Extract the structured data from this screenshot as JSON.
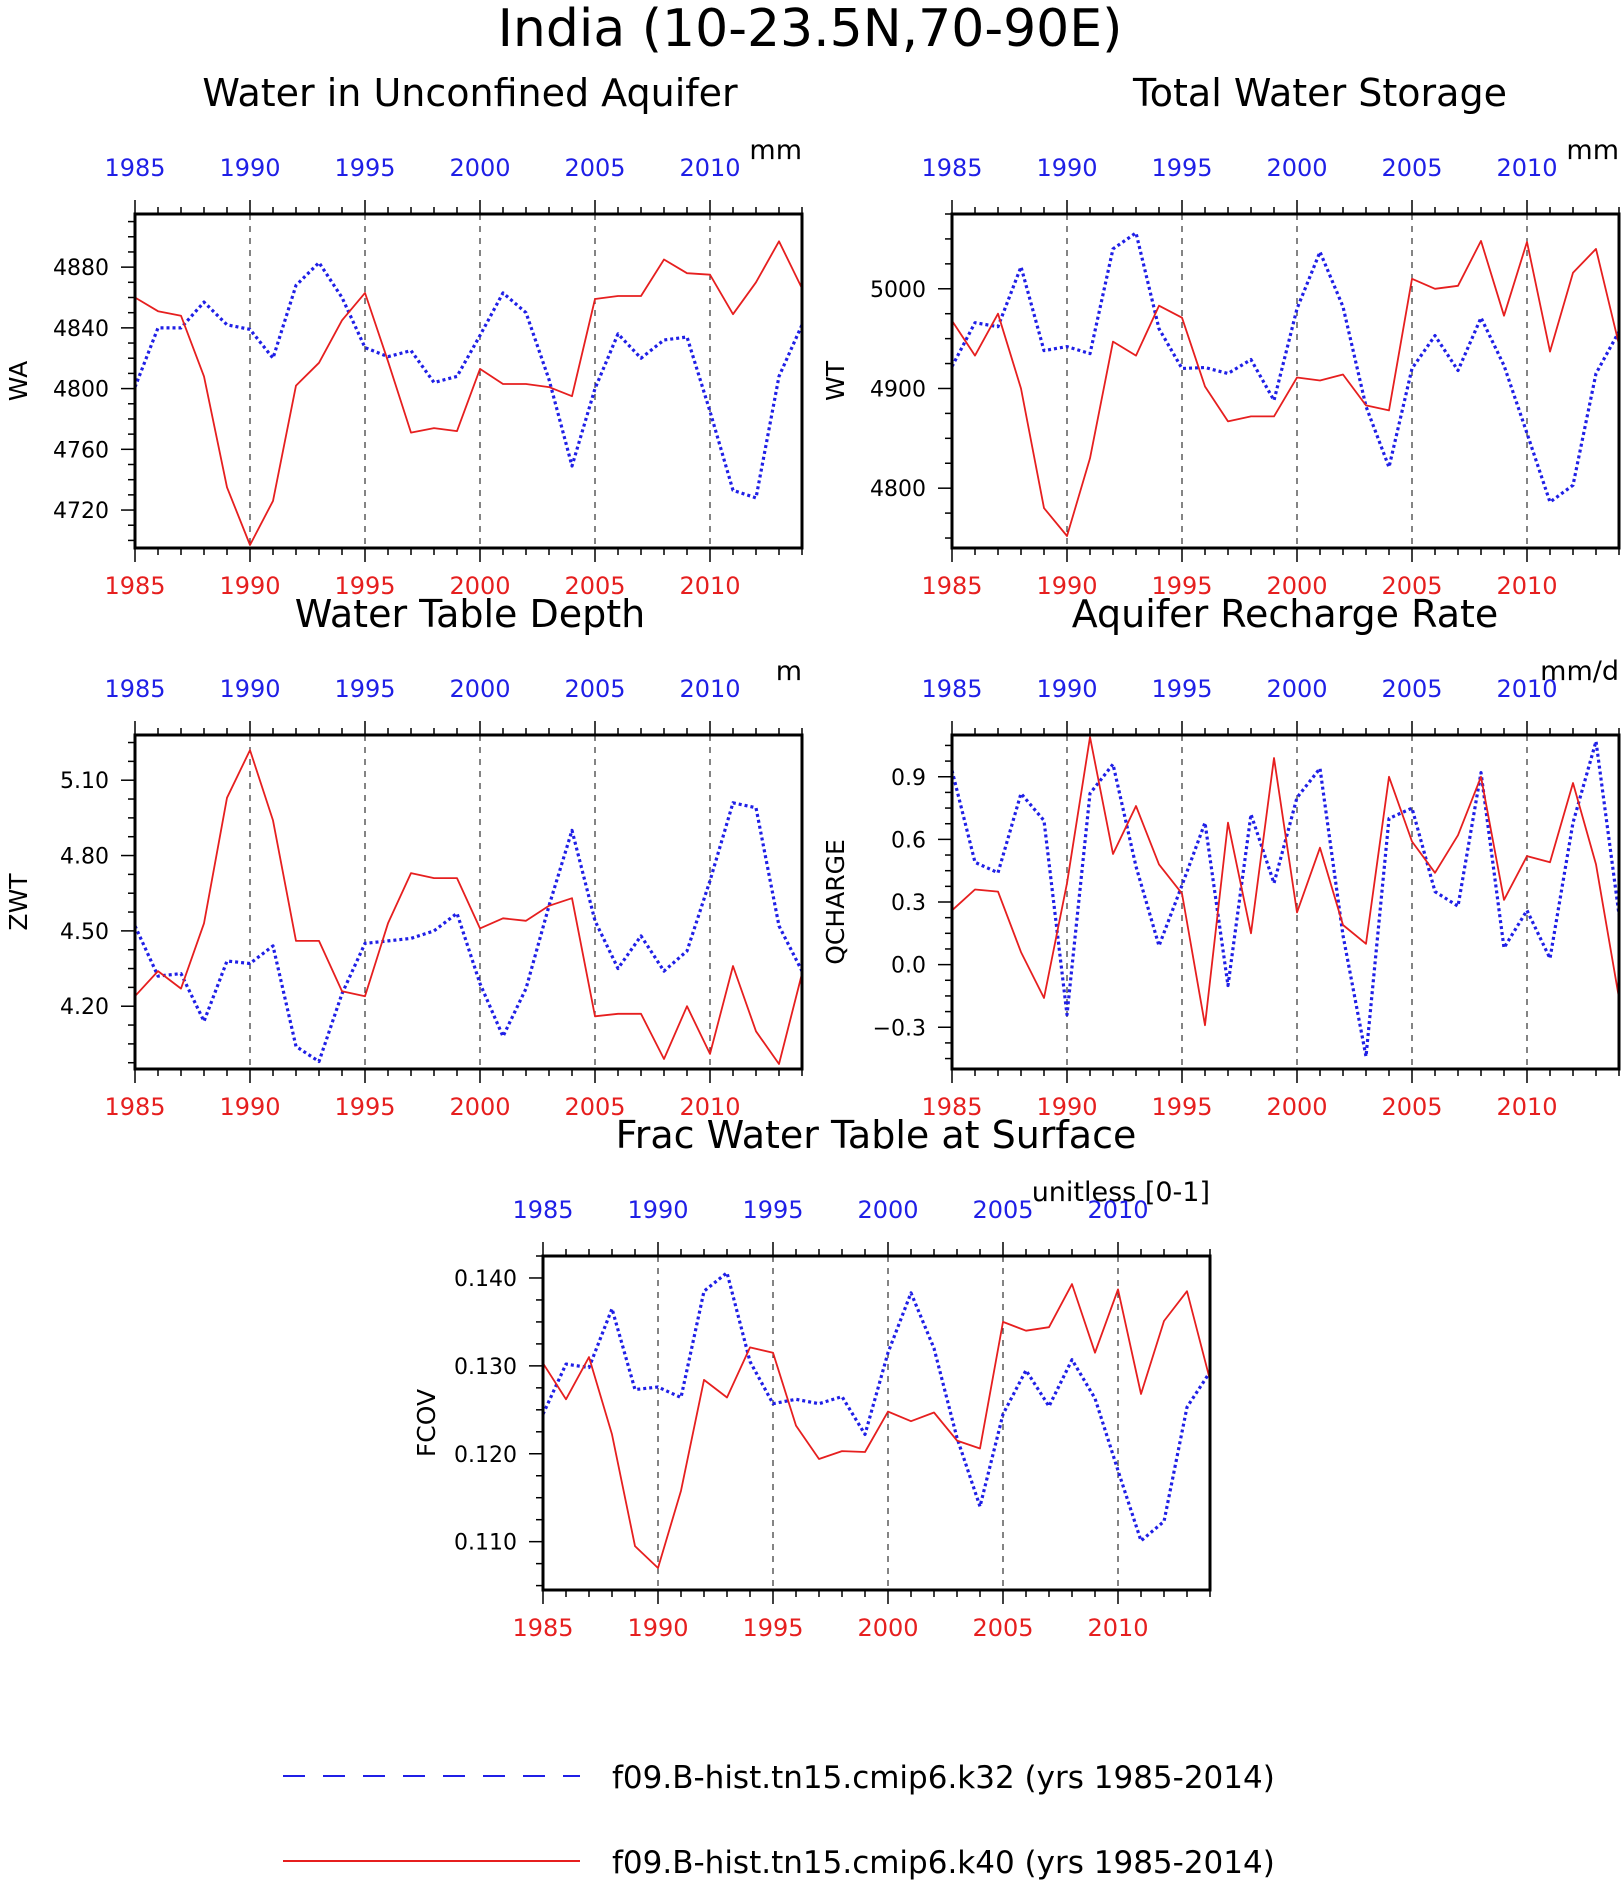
{
  "page_title": "India (10-23.5N,70-90E)",
  "colors": {
    "k32": "#1f1fe6",
    "k40": "#e61f1f",
    "axis": "#000000"
  },
  "legend": [
    {
      "label": "f09.B-hist.tn15.cmip6.k32 (yrs 1985-2014)",
      "style": "dashed",
      "color": "#1f1fe6"
    },
    {
      "label": "f09.B-hist.tn15.cmip6.k40 (yrs 1985-2014)",
      "style": "solid",
      "color": "#e61f1f"
    }
  ],
  "chart_data": [
    {
      "type": "line",
      "title": "Water in Unconfined Aquifer",
      "units": "mm",
      "ylabel": "WA",
      "xlim": [
        1985,
        2014
      ],
      "ylim": [
        4695,
        4915
      ],
      "yticks": [
        4720,
        4760,
        4800,
        4840,
        4880
      ],
      "ytick_labels": [
        "4720",
        "4760",
        "4800",
        "4840",
        "4880"
      ],
      "xticks": [
        1985,
        1990,
        1995,
        2000,
        2005,
        2010
      ],
      "ref_years": [
        1990,
        1995,
        2000,
        2005,
        2010
      ],
      "x": [
        1985,
        1986,
        1987,
        1988,
        1989,
        1990,
        1991,
        1992,
        1993,
        1994,
        1995,
        1996,
        1997,
        1998,
        1999,
        2000,
        2001,
        2002,
        2003,
        2004,
        2005,
        2006,
        2007,
        2008,
        2009,
        2010,
        2011,
        2012,
        2013,
        2014
      ],
      "series": [
        {
          "name": "f09.B-hist.tn15.cmip6.k32",
          "values": [
            4801,
            4840,
            4840,
            4857,
            4842,
            4839,
            4820,
            4868,
            4883,
            4860,
            4827,
            4821,
            4825,
            4804,
            4808,
            4835,
            4863,
            4850,
            4806,
            4749,
            4800,
            4836,
            4820,
            4832,
            4834,
            4785,
            4733,
            4728,
            4808,
            4842
          ]
        },
        {
          "name": "f09.B-hist.tn15.cmip6.k40",
          "values": [
            4860,
            4851,
            4848,
            4808,
            4735,
            4697,
            4726,
            4802,
            4817,
            4845,
            4863,
            4818,
            4771,
            4774,
            4772,
            4813,
            4803,
            4803,
            4801,
            4795,
            4859,
            4861,
            4861,
            4885,
            4876,
            4875,
            4849,
            4870,
            4897,
            4866
          ]
        }
      ]
    },
    {
      "type": "line",
      "title": "Total Water Storage",
      "units": "mm",
      "ylabel": "WT",
      "xlim": [
        1985,
        2014
      ],
      "ylim": [
        4740,
        5075
      ],
      "yticks": [
        4800,
        4900,
        5000
      ],
      "ytick_labels": [
        "4800",
        "4900",
        "5000"
      ],
      "xticks": [
        1985,
        1990,
        1995,
        2000,
        2005,
        2010
      ],
      "ref_years": [
        1990,
        1995,
        2000,
        2005,
        2010
      ],
      "x": [
        1985,
        1986,
        1987,
        1988,
        1989,
        1990,
        1991,
        1992,
        1993,
        1994,
        1995,
        1996,
        1997,
        1998,
        1999,
        2000,
        2001,
        2002,
        2003,
        2004,
        2005,
        2006,
        2007,
        2008,
        2009,
        2010,
        2011,
        2012,
        2013,
        2014
      ],
      "series": [
        {
          "name": "f09.B-hist.tn15.cmip6.k32",
          "values": [
            4922,
            4966,
            4962,
            5022,
            4938,
            4942,
            4935,
            5040,
            5056,
            4960,
            4920,
            4921,
            4915,
            4929,
            4888,
            4980,
            5037,
            4982,
            4882,
            4821,
            4920,
            4953,
            4918,
            4971,
            4923,
            4855,
            4786,
            4803,
            4915,
            4957
          ]
        },
        {
          "name": "f09.B-hist.tn15.cmip6.k40",
          "values": [
            4968,
            4933,
            4975,
            4900,
            4780,
            4752,
            4830,
            4947,
            4933,
            4983,
            4971,
            4902,
            4867,
            4872,
            4872,
            4911,
            4908,
            4914,
            4883,
            4878,
            5010,
            5000,
            5003,
            5048,
            4973,
            5047,
            4937,
            5016,
            5040,
            4944
          ]
        }
      ]
    },
    {
      "type": "line",
      "title": "Water Table Depth",
      "units": "m",
      "ylabel": "ZWT",
      "xlim": [
        1985,
        2014
      ],
      "ylim": [
        3.95,
        5.28
      ],
      "yticks": [
        4.2,
        4.5,
        4.8,
        5.1
      ],
      "ytick_labels": [
        "4.20",
        "4.50",
        "4.80",
        "5.10"
      ],
      "xticks": [
        1985,
        1990,
        1995,
        2000,
        2005,
        2010
      ],
      "ref_years": [
        1990,
        1995,
        2000,
        2005,
        2010
      ],
      "x": [
        1985,
        1986,
        1987,
        1988,
        1989,
        1990,
        1991,
        1992,
        1993,
        1994,
        1995,
        1996,
        1997,
        1998,
        1999,
        2000,
        2001,
        2002,
        2003,
        2004,
        2005,
        2006,
        2007,
        2008,
        2009,
        2010,
        2011,
        2012,
        2013,
        2014
      ],
      "series": [
        {
          "name": "f09.B-hist.tn15.cmip6.k32",
          "values": [
            4.52,
            4.32,
            4.33,
            4.14,
            4.38,
            4.37,
            4.44,
            4.04,
            3.98,
            4.25,
            4.45,
            4.46,
            4.47,
            4.5,
            4.57,
            4.29,
            4.08,
            4.27,
            4.6,
            4.9,
            4.54,
            4.35,
            4.48,
            4.34,
            4.42,
            4.7,
            5.01,
            4.99,
            4.52,
            4.34
          ]
        },
        {
          "name": "f09.B-hist.tn15.cmip6.k40",
          "values": [
            4.24,
            4.34,
            4.27,
            4.53,
            5.03,
            5.22,
            4.94,
            4.46,
            4.46,
            4.26,
            4.24,
            4.53,
            4.73,
            4.71,
            4.71,
            4.51,
            4.55,
            4.54,
            4.6,
            4.63,
            4.16,
            4.17,
            4.17,
            3.99,
            4.2,
            4.01,
            4.36,
            4.1,
            3.97,
            4.33
          ]
        }
      ]
    },
    {
      "type": "line",
      "title": "Aquifer Recharge Rate",
      "units": "mm/d",
      "ylabel": "QCHARGE",
      "xlim": [
        1985,
        2014
      ],
      "ylim": [
        -0.5,
        1.1
      ],
      "yticks": [
        -0.3,
        0.0,
        0.3,
        0.6,
        0.9
      ],
      "ytick_labels": [
        "−0.3",
        "0.0",
        "0.3",
        "0.6",
        "0.9"
      ],
      "xticks": [
        1985,
        1990,
        1995,
        2000,
        2005,
        2010
      ],
      "ref_years": [
        1990,
        1995,
        2000,
        2005,
        2010
      ],
      "x": [
        1985,
        1986,
        1987,
        1988,
        1989,
        1990,
        1991,
        1992,
        1993,
        1994,
        1995,
        1996,
        1997,
        1998,
        1999,
        2000,
        2001,
        2002,
        2003,
        2004,
        2005,
        2006,
        2007,
        2008,
        2009,
        2010,
        2011,
        2012,
        2013,
        2014
      ],
      "series": [
        {
          "name": "f09.B-hist.tn15.cmip6.k32",
          "values": [
            0.93,
            0.49,
            0.44,
            0.82,
            0.69,
            -0.24,
            0.82,
            0.96,
            0.47,
            0.09,
            0.38,
            0.68,
            -0.1,
            0.72,
            0.39,
            0.8,
            0.94,
            0.14,
            -0.44,
            0.7,
            0.75,
            0.35,
            0.28,
            0.92,
            0.08,
            0.26,
            0.03,
            0.68,
            1.07,
            0.24
          ]
        },
        {
          "name": "f09.B-hist.tn15.cmip6.k40",
          "values": [
            0.26,
            0.36,
            0.35,
            0.06,
            -0.16,
            0.39,
            1.09,
            0.53,
            0.76,
            0.48,
            0.34,
            -0.29,
            0.68,
            0.15,
            0.99,
            0.25,
            0.56,
            0.19,
            0.1,
            0.9,
            0.59,
            0.44,
            0.62,
            0.9,
            0.31,
            0.52,
            0.49,
            0.87,
            0.48,
            -0.16
          ]
        }
      ]
    },
    {
      "type": "line",
      "title": "Frac Water Table at Surface",
      "units": "unitless [0-1]",
      "ylabel": "FCOV",
      "xlim": [
        1985,
        2014
      ],
      "ylim": [
        0.1045,
        0.1425
      ],
      "yticks": [
        0.11,
        0.12,
        0.13,
        0.14
      ],
      "ytick_labels": [
        "0.110",
        "0.120",
        "0.130",
        "0.140"
      ],
      "xticks": [
        1985,
        1990,
        1995,
        2000,
        2005,
        2010
      ],
      "ref_years": [
        1990,
        1995,
        2000,
        2005,
        2010
      ],
      "x": [
        1985,
        1986,
        1987,
        1988,
        1989,
        1990,
        1991,
        1992,
        1993,
        1994,
        1995,
        1996,
        1997,
        1998,
        1999,
        2000,
        2001,
        2002,
        2003,
        2004,
        2005,
        2006,
        2007,
        2008,
        2009,
        2010,
        2011,
        2012,
        2013,
        2014
      ],
      "series": [
        {
          "name": "f09.B-hist.tn15.cmip6.k32",
          "values": [
            0.1245,
            0.1302,
            0.1298,
            0.1365,
            0.1273,
            0.1276,
            0.1264,
            0.1385,
            0.1406,
            0.1305,
            0.1257,
            0.1262,
            0.1257,
            0.1265,
            0.1222,
            0.1315,
            0.1383,
            0.132,
            0.1218,
            0.114,
            0.1245,
            0.1295,
            0.1254,
            0.1307,
            0.1263,
            0.1181,
            0.1101,
            0.1123,
            0.1253,
            0.1293
          ]
        },
        {
          "name": "f09.B-hist.tn15.cmip6.k40",
          "values": [
            0.1303,
            0.1262,
            0.131,
            0.1222,
            0.1095,
            0.107,
            0.1158,
            0.1284,
            0.1264,
            0.1321,
            0.1315,
            0.1232,
            0.1194,
            0.1203,
            0.1202,
            0.1248,
            0.1237,
            0.1247,
            0.1215,
            0.1206,
            0.135,
            0.134,
            0.1344,
            0.1393,
            0.1315,
            0.1387,
            0.1268,
            0.1351,
            0.1385,
            0.1284
          ]
        }
      ]
    }
  ]
}
